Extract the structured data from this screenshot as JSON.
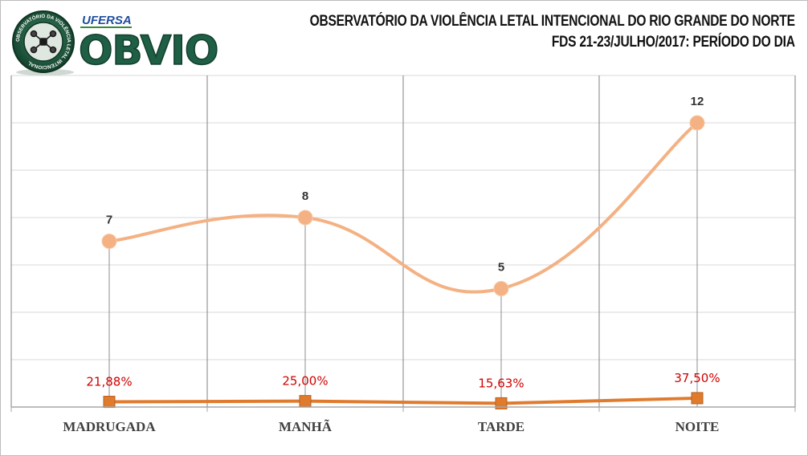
{
  "header": {
    "title_line1": "OBSERVATÓRIO DA VIOLÊNCIA LETAL INTENCIONAL DO RIO GRANDE DO NORTE",
    "title_line2": "FDS 21-23/JULHO/2017:  PERÍODO DO DIA"
  },
  "logo": {
    "brand": "OBVIO",
    "university": "UFERSA",
    "seal_text": "OBSERVATÓRIO DA VIOLÊNCIA LETAL INTENCIONAL"
  },
  "colors": {
    "count_series": "#f4b183",
    "percent_series": "#e07b2e",
    "percent_label": "#d00000",
    "count_label": "#333333",
    "gridline": "#7f7f7f",
    "logo_green": "#1f5f46"
  },
  "chart_data": {
    "type": "line",
    "categories": [
      "MADRUGADA",
      "MANHÃ",
      "TARDE",
      "NOITE"
    ],
    "series": [
      {
        "values": [
          7,
          8,
          5,
          12
        ],
        "labels": [
          "7",
          "8",
          "5",
          "12"
        ],
        "marker": "circle",
        "smooth": true
      },
      {
        "values": [
          21.88,
          25.0,
          15.63,
          37.5
        ],
        "labels": [
          "21,88%",
          "25,00%",
          "15,63%",
          "37,50%"
        ],
        "marker": "square",
        "smooth": false
      }
    ],
    "ylim": [
      0,
      14
    ],
    "y_axis_visible": false,
    "grid": true,
    "legend": "none"
  }
}
